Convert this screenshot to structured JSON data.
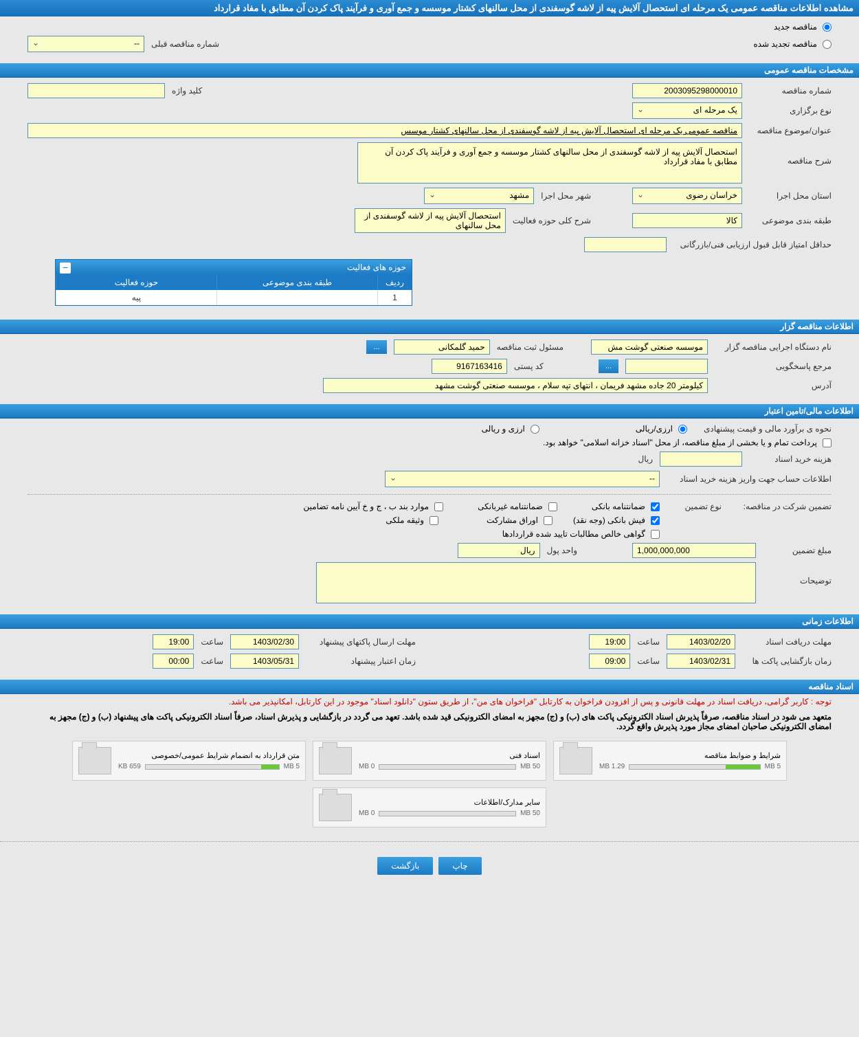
{
  "header": {
    "title": "مشاهده اطلاعات مناقصه عمومی یک مرحله ای استحصال آلایش پیه از لاشه گوسفندی از محل سالنهای کشتار موسسه و جمع آوری و فرآیند پاک کردن آن مطابق با مفاد قرارداد"
  },
  "tender_type": {
    "new_label": "مناقصه جدید",
    "renewed_label": "مناقصه تجدید شده",
    "prev_number_label": "شماره مناقصه قبلی",
    "prev_number_value": "--"
  },
  "sections": {
    "general": "مشخصات مناقصه عمومی",
    "organizer": "اطلاعات مناقصه گزار",
    "financial": "اطلاعات مالی/تامین اعتبار",
    "timing": "اطلاعات زمانی",
    "documents": "اسناد مناقصه"
  },
  "general": {
    "number_label": "شماره مناقصه",
    "number_value": "2003095298000010",
    "keyword_label": "کلید واژه",
    "keyword_value": "",
    "holding_type_label": "نوع برگزاری",
    "holding_type_value": "یک مرحله ای",
    "subject_label": "عنوان/موضوع مناقصه",
    "subject_value": "مناقصه عمومی یک مرحله ای استحصال آلایش پیه از لاشه گوسفندی از محل سالنهای کشتار موسس",
    "description_label": "شرح مناقصه",
    "description_value": "استحصال آلایش پیه از لاشه گوسفندی از محل سالنهای کشتار موسسه و جمع آوری و فرآیند پاک کردن آن مطابق با مفاد قرارداد",
    "province_label": "استان محل اجرا",
    "province_value": "خراسان رضوی",
    "city_label": "شهر محل اجرا",
    "city_value": "مشهد",
    "category_label": "طبقه بندی موضوعی",
    "category_value": "کالا",
    "activity_desc_label": "شرح کلی حوزه فعالیت",
    "activity_desc_value": "استحصال آلایش پیه از لاشه گوسفندی از محل سالنهای",
    "min_score_label": "حداقل امتیاز قابل قبول ارزیابی فنی/بازرگانی",
    "min_score_value": ""
  },
  "activity_table": {
    "title": "حوزه های فعالیت",
    "col_idx": "ردیف",
    "col_cat": "طبقه بندی موضوعی",
    "col_act": "حوزه فعالیت",
    "rows": [
      {
        "idx": "1",
        "cat": "",
        "act": "پیه"
      }
    ]
  },
  "organizer": {
    "exec_label": "نام دستگاه اجرایی مناقصه گزار",
    "exec_value": "موسسه صنعتی گوشت مش",
    "registrar_label": "مسئول ثبت مناقصه",
    "registrar_value": "حمید گلمکانی",
    "more_btn": "...",
    "ref_label": "مرجع پاسخگویی",
    "ref_value": "",
    "ref_more": "...",
    "postal_label": "کد پستی",
    "postal_value": "9167163416",
    "address_label": "آدرس",
    "address_value": "کیلومتر 20 جاده مشهد فریمان ، انتهای تپه سلام ، موسسه صنعتی گوشت مشهد"
  },
  "financial": {
    "estimate_label": "نحوه ی برآورد مالی و قیمت پیشنهادی",
    "opt_rial": "ارزی/ریالی",
    "opt_fx": "ارزی و ریالی",
    "payment_note": "پرداخت تمام و یا بخشی از مبلغ مناقصه، از محل \"اسناد خزانه اسلامی\" خواهد بود.",
    "doc_cost_label": "هزینه خرید اسناد",
    "doc_cost_value": "",
    "doc_cost_unit": "ریال",
    "account_label": "اطلاعات حساب جهت واریز هزینه خرید اسناد",
    "account_value": "--",
    "guarantee_label": "تضمین شرکت در مناقصه:",
    "guarantee_type_label": "نوع تضمین",
    "chk_bank": "ضمانتنامه بانکی",
    "chk_nonbank": "ضمانتنامه غیربانکی",
    "chk_regulation": "موارد بند ب ، ج و خ آیین نامه تضامین",
    "chk_cash": "فیش بانکی (وجه نقد)",
    "chk_securities": "اوراق مشارکت",
    "chk_property": "وثیقه ملکی",
    "chk_claims": "گواهی خالص مطالبات تایید شده قراردادها",
    "amount_label": "مبلغ تضمین",
    "amount_value": "1,000,000,000",
    "currency_label": "واحد پول",
    "currency_value": "ریال",
    "notes_label": "توضیحات",
    "notes_value": ""
  },
  "timing": {
    "receive_label": "مهلت دریافت اسناد",
    "receive_date": "1403/02/20",
    "receive_time_label": "ساعت",
    "receive_time": "19:00",
    "send_label": "مهلت ارسال پاکتهای پیشنهاد",
    "send_date": "1403/02/30",
    "send_time_label": "ساعت",
    "send_time": "19:00",
    "open_label": "زمان بازگشایی پاکت ها",
    "open_date": "1403/02/31",
    "open_time_label": "ساعت",
    "open_time": "09:00",
    "validity_label": "زمان اعتبار پیشنهاد",
    "validity_date": "1403/05/31",
    "validity_time_label": "ساعت",
    "validity_time": "00:00"
  },
  "documents": {
    "notice1": "توجه : کاربر گرامی، دریافت اسناد در مهلت قانونی و پس از افزودن فراخوان به کارتابل \"فراخوان های من\"، از طریق ستون \"دانلود اسناد\" موجود در این کارتابل، امکانپذیر می باشد.",
    "notice2": "متعهد می شود در اسناد مناقصه، صرفاً پذیرش اسناد الکترونیکی پاکت های (ب) و (ج) مجهز به امضای الکترونیکی قید شده باشد. تعهد می گردد در بازگشایی و پذیرش اسناد، صرفاً اسناد الکترونیکی پاکت های پیشنهاد (ب) و (ج) مجهز به امضای الکترونیکی صاحبان امضای مجاز مورد پذیرش واقع گردد.",
    "files": [
      {
        "title": "شرایط و ضوابط مناقصه",
        "used": "1.29 MB",
        "total": "5 MB",
        "pct": 26
      },
      {
        "title": "اسناد فنی",
        "used": "0 MB",
        "total": "50 MB",
        "pct": 0
      },
      {
        "title": "متن قرارداد به انضمام شرایط عمومی/خصوصی",
        "used": "659 KB",
        "total": "5 MB",
        "pct": 13
      },
      {
        "title": "سایر مدارک/اطلاعات",
        "used": "0 MB",
        "total": "50 MB",
        "pct": 0
      }
    ]
  },
  "footer": {
    "print": "چاپ",
    "back": "بازگشت"
  }
}
